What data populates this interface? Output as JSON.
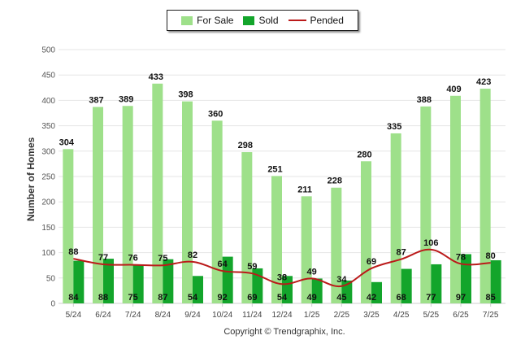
{
  "legend": {
    "for_sale": "For Sale",
    "sold": "Sold",
    "pended": "Pended"
  },
  "copyright": "Copyright © Trendgraphix, Inc.",
  "colors": {
    "for_sale": "#9ee08a",
    "sold": "#13a52b",
    "pended": "#bb1a1a",
    "grid": "#e6e6e6"
  },
  "chart_data": {
    "type": "bar",
    "categories": [
      "5/24",
      "6/24",
      "7/24",
      "8/24",
      "9/24",
      "10/24",
      "11/24",
      "12/24",
      "1/25",
      "2/25",
      "3/25",
      "4/25",
      "5/25",
      "6/25",
      "7/25"
    ],
    "ylabel": "Number of Homes",
    "xlabel": "",
    "ylim": [
      0,
      500
    ],
    "yticks": [
      0,
      50,
      100,
      150,
      200,
      250,
      300,
      350,
      400,
      450,
      500
    ],
    "grid": true,
    "legend_position": "top-center",
    "series": [
      {
        "name": "For Sale",
        "type": "bar",
        "values": [
          304,
          387,
          389,
          433,
          398,
          360,
          298,
          251,
          211,
          228,
          280,
          335,
          388,
          409,
          423
        ]
      },
      {
        "name": "Sold",
        "type": "bar",
        "values": [
          84,
          88,
          75,
          87,
          54,
          92,
          69,
          54,
          49,
          45,
          42,
          68,
          77,
          97,
          85
        ]
      },
      {
        "name": "Pended",
        "type": "line",
        "values": [
          88,
          77,
          76,
          75,
          82,
          64,
          59,
          38,
          49,
          34,
          69,
          87,
          106,
          78,
          80
        ]
      }
    ]
  }
}
